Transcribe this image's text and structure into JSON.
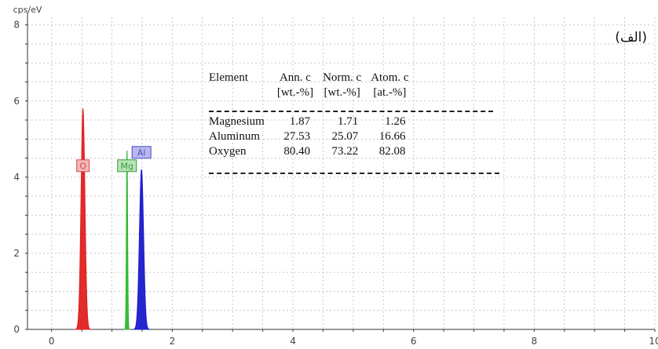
{
  "panel_label": "(الف)",
  "chart_data": {
    "type": "line",
    "y_unit": "cps/eV",
    "xlim": [
      -0.4,
      10.0
    ],
    "ylim": [
      0,
      8.2
    ],
    "x_ticks": [
      0,
      2,
      4,
      6,
      8,
      10
    ],
    "y_ticks": [
      0,
      2,
      4,
      6,
      8
    ],
    "grid": true,
    "series": [
      {
        "name": "O",
        "color": "#e02020",
        "peak_x": 0.52,
        "peak_y": 5.8,
        "width": 0.032
      },
      {
        "name": "Mg",
        "color": "#2db82d",
        "peak_x": 1.25,
        "peak_y": 4.7,
        "width": 0.01
      },
      {
        "name": "Al",
        "color": "#1a1acc",
        "peak_x": 1.49,
        "peak_y": 4.2,
        "width": 0.034
      }
    ],
    "labels": [
      {
        "text": "O",
        "x": 0.52,
        "y": 4.3,
        "bg": "#f3b8b8",
        "border": "#d44a4a"
      },
      {
        "text": "Mg",
        "x": 1.25,
        "y": 4.3,
        "bg": "#b8e4b8",
        "border": "#3a9a3a"
      },
      {
        "text": "Al",
        "x": 1.49,
        "y": 4.65,
        "bg": "#b8b8ee",
        "border": "#4a4ac0"
      }
    ]
  },
  "table": {
    "headers": [
      [
        "Element",
        ""
      ],
      [
        "Ann. c",
        "[wt.-%]"
      ],
      [
        "Norm. c",
        "[wt.-%]"
      ],
      [
        "Atom. c",
        "[at.-%]"
      ]
    ],
    "rows": [
      [
        "Magnesium",
        "1.87",
        "1.71",
        "1.26"
      ],
      [
        "Aluminum",
        "27.53",
        "25.07",
        "16.66"
      ],
      [
        "Oxygen",
        "80.40",
        "73.22",
        "82.08"
      ]
    ]
  }
}
